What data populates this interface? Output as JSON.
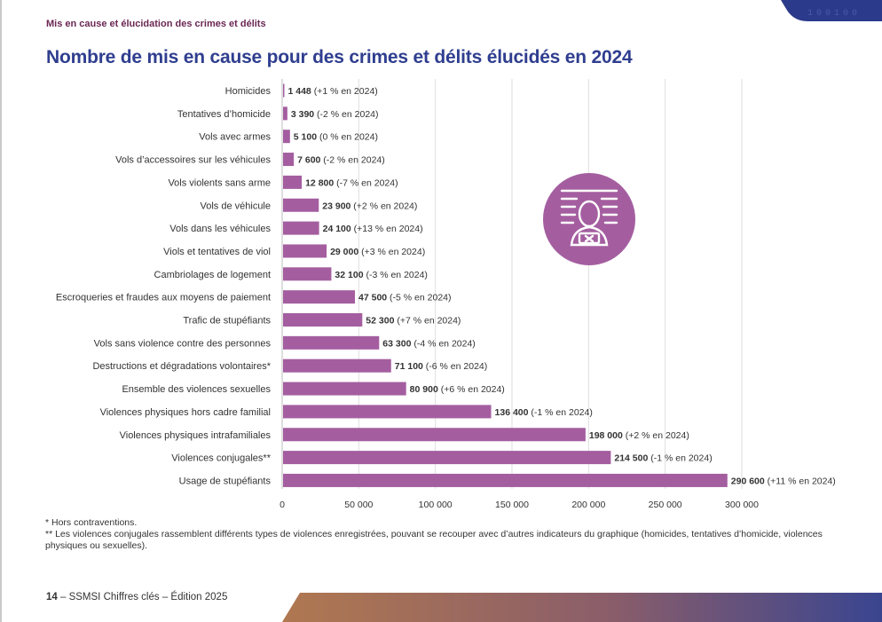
{
  "header": {
    "section": "Mis en cause et élucidation des crimes et délits",
    "title": "Nombre de mis en cause pour des crimes et délits élucidés en 2024"
  },
  "chart_data": {
    "type": "bar",
    "orientation": "horizontal",
    "title": "Nombre de mis en cause pour des crimes et délits élucidés en 2024",
    "xlim": [
      0,
      300000
    ],
    "x_ticks": [
      0,
      50000,
      100000,
      150000,
      200000,
      250000,
      300000
    ],
    "x_tick_labels": [
      "0",
      "50 000",
      "100 000",
      "150 000",
      "200 000",
      "250 000",
      "300 000"
    ],
    "grid": true,
    "bar_color": "#a45ea0",
    "categories": [
      "Homicides",
      "Tentatives d’homicide",
      "Vols avec armes",
      "Vols d’accessoires sur les véhicules",
      "Vols violents sans arme",
      "Vols de véhicule",
      "Vols dans les véhicules",
      "Viols et tentatives de viol",
      "Cambriolages de logement",
      "Escroqueries et fraudes aux moyens de paiement",
      "Trafic de stupéfiants",
      "Vols sans violence contre des personnes",
      "Destructions et dégradations volontaires*",
      "Ensemble des violences sexuelles",
      "Violences physiques hors cadre familial",
      "Violences physiques intrafamiliales",
      "Violences conjugales**",
      "Usage de stupéfiants"
    ],
    "values": [
      1448,
      3390,
      5100,
      7600,
      12800,
      23900,
      24100,
      29000,
      32100,
      47500,
      52300,
      63300,
      71100,
      80900,
      136400,
      198000,
      214500,
      290600
    ],
    "value_labels": [
      "1 448",
      "3 390",
      "5 100",
      "7 600",
      "12 800",
      "23 900",
      "24 100",
      "29 000",
      "32 100",
      "47 500",
      "52 300",
      "63 300",
      "71 100",
      "80 900",
      "136 400",
      "198 000",
      "214 500",
      "290 600"
    ],
    "change_labels": [
      "(+1 % en 2024)",
      "(-2 % en 2024)",
      "(0 % en 2024)",
      "(-2 % en 2024)",
      "(-7 % en 2024)",
      "(+2 % en 2024)",
      "(+13 % en 2024)",
      "(+3 % en 2024)",
      "(-3 % en 2024)",
      "(-5 % en 2024)",
      "(+7 % en 2024)",
      "(-4 % en 2024)",
      "(-6 % en 2024)",
      "(+6 % en 2024)",
      "(-1 % en 2024)",
      "(+2 % en 2024)",
      "(-1 % en 2024)",
      "(+11 % en 2024)"
    ]
  },
  "footnotes": {
    "note1": "* Hors contraventions.",
    "note2": "** Les violences conjugales rassemblent différents types de violences enregistrées, pouvant se recouper avec d’autres indicateurs du graphique (homicides, tentatives d’homicide, violences physiques ou sexuelles)."
  },
  "footer": {
    "page": "14",
    "text": " – SSMSI  Chiffres clés – Édition 2025"
  },
  "decor": {
    "corner_digits": "100100",
    "icon": "suspect-icon",
    "circle_color": "#a45ea0",
    "accent_color": "#2f3e8f"
  }
}
